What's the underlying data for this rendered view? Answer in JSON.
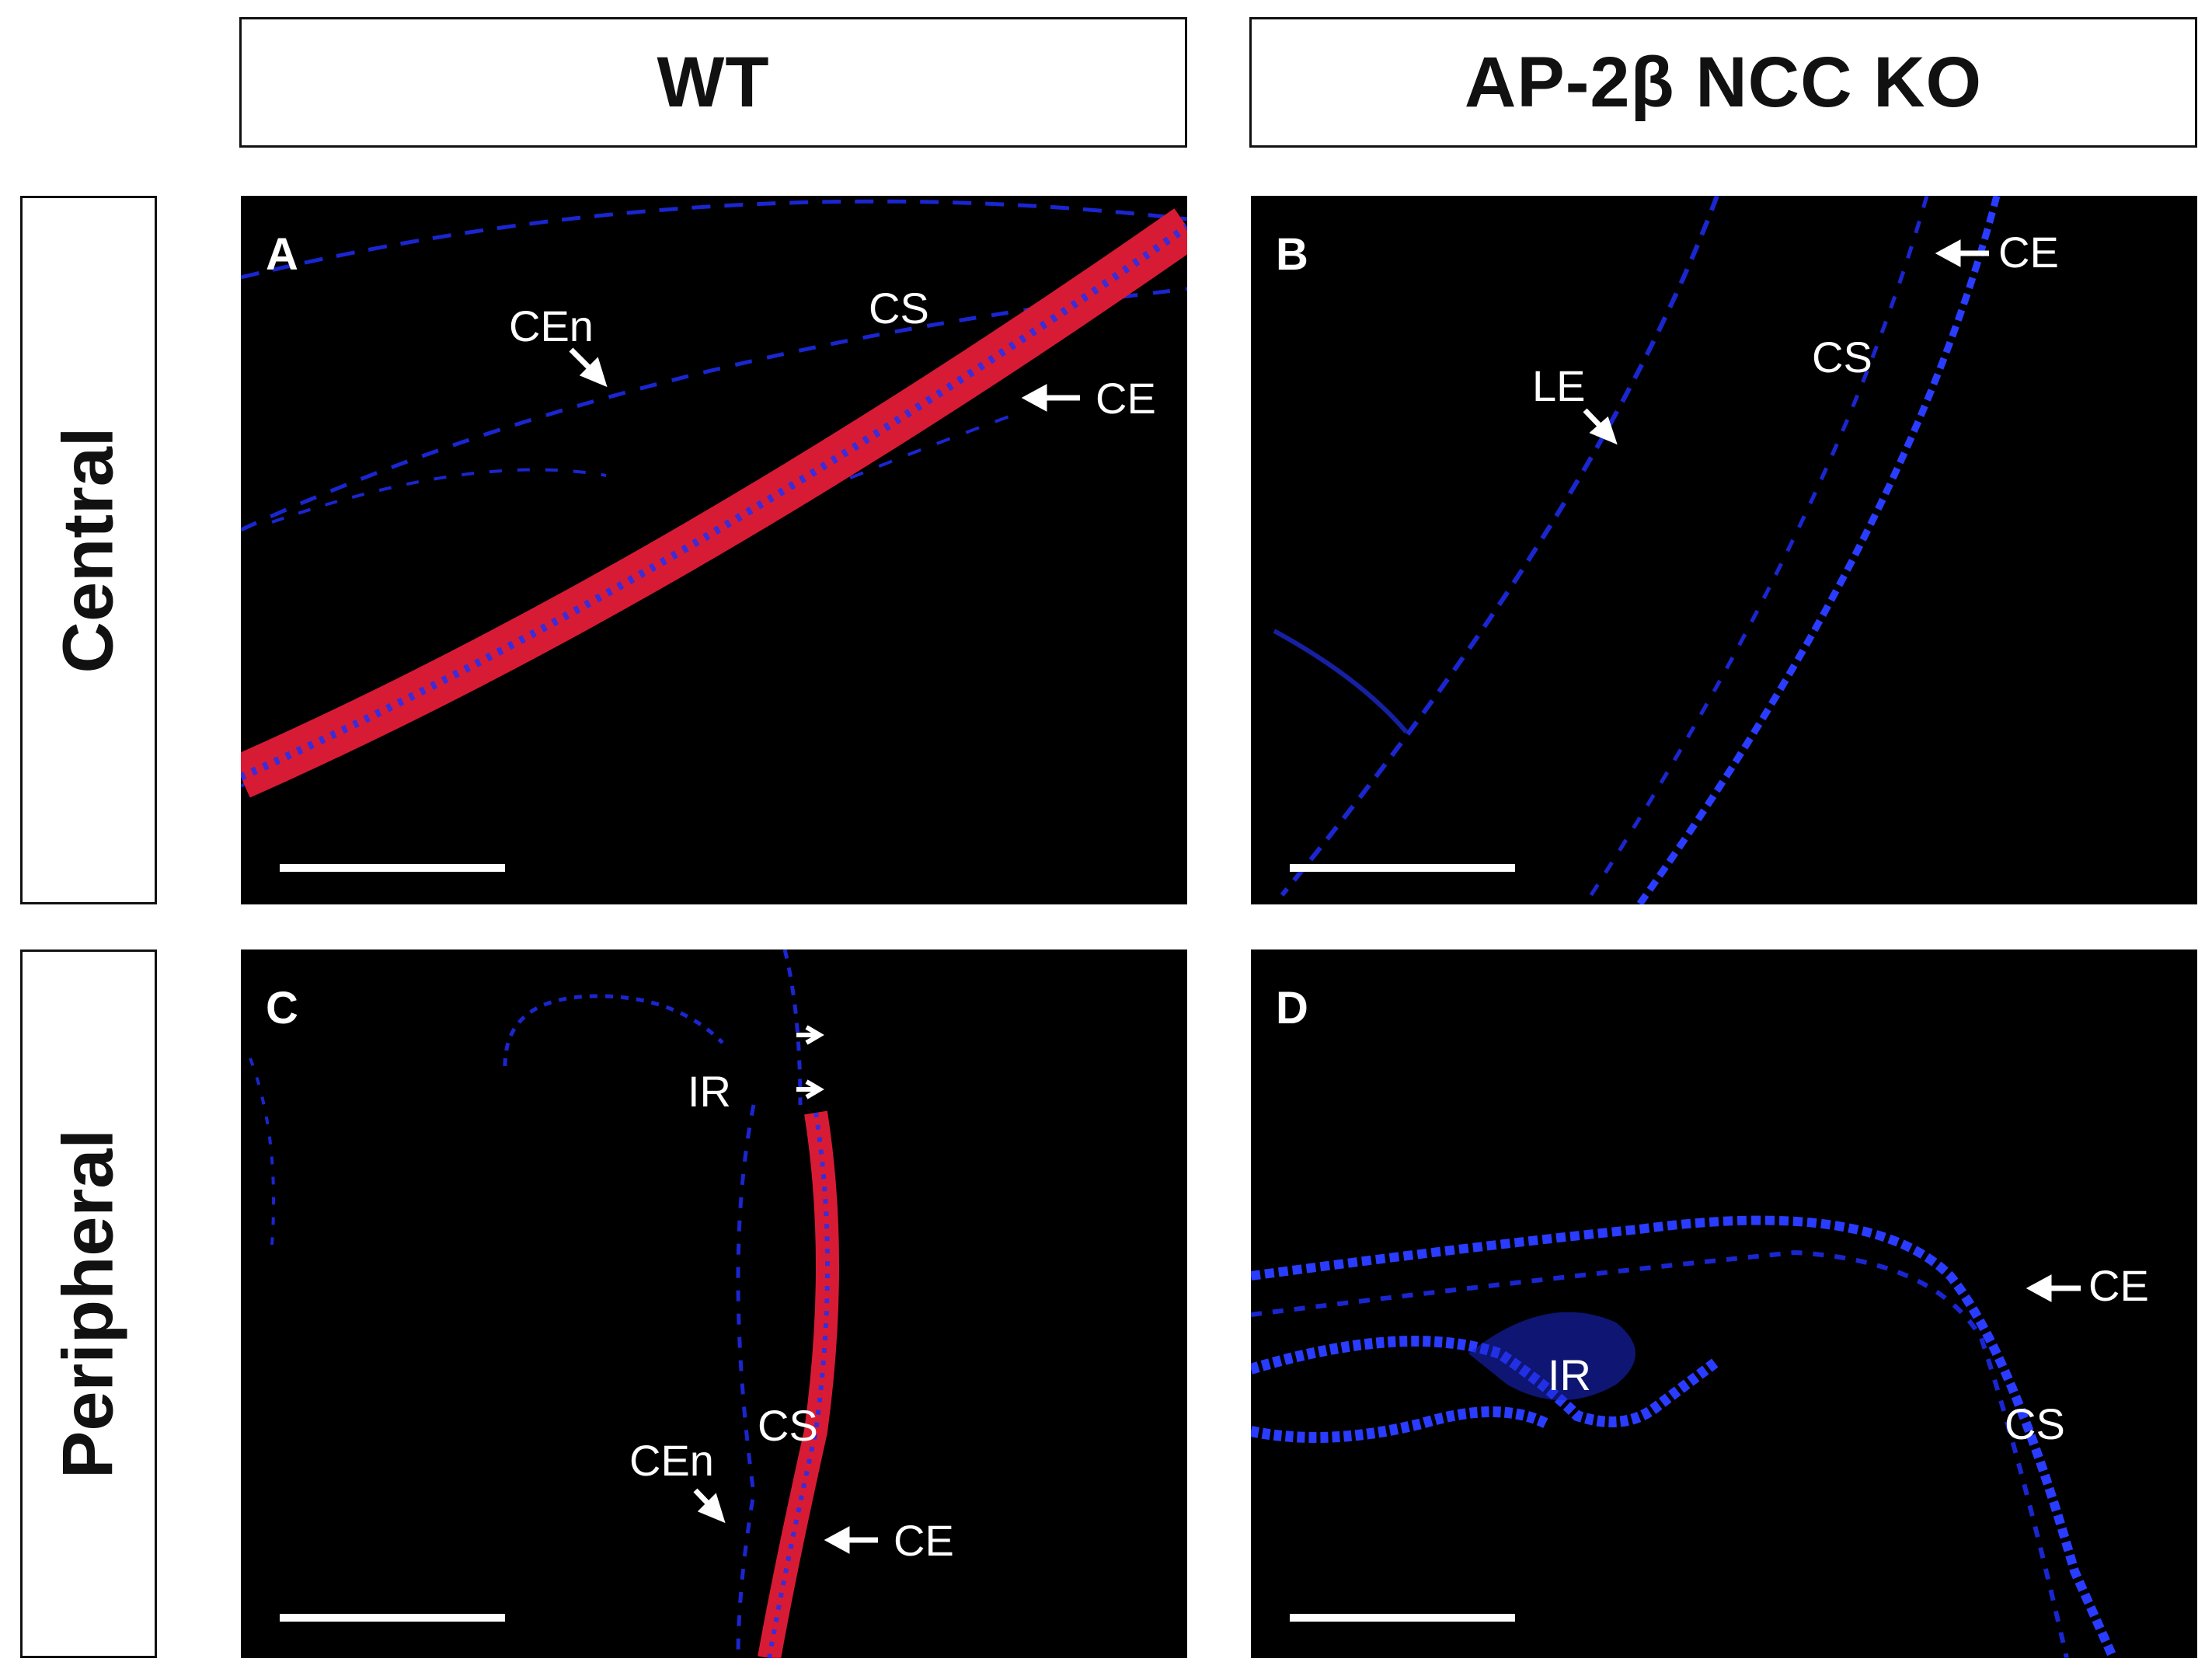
{
  "columns": [
    "WT",
    "AP-2β NCC KO"
  ],
  "rows": [
    "Central",
    "Peripheral"
  ],
  "panels": {
    "a": {
      "label": "A",
      "annotations": [
        "CEn",
        "CS",
        "CE"
      ]
    },
    "b": {
      "label": "B",
      "annotations": [
        "CE",
        "CS",
        "LE"
      ]
    },
    "c": {
      "label": "C",
      "annotations": [
        "IR",
        "CS",
        "CEn",
        "CE"
      ]
    },
    "d": {
      "label": "D",
      "annotations": [
        "CE",
        "IR",
        "CS"
      ]
    }
  },
  "colors": {
    "nuclei_blue": "#2a3cff",
    "epithelium_red": "#e0203a",
    "background": "#000000"
  }
}
